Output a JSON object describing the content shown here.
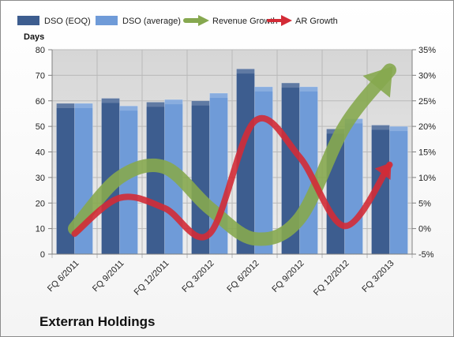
{
  "caption": "Exterran Holdings",
  "chart_data": {
    "type": "bar",
    "categories": [
      "FQ 6/2011",
      "FQ 9/2011",
      "FQ 12/2011",
      "FQ 3/2012",
      "FQ 6/2012",
      "FQ 9/2012",
      "FQ 12/2012",
      "FQ 3/2013"
    ],
    "series": [
      {
        "name": "DSO (EOQ)",
        "axis": "left",
        "kind": "bar",
        "color": "#3d5d8f",
        "values": [
          59,
          61,
          59.5,
          60,
          72.5,
          67,
          49,
          50.5
        ]
      },
      {
        "name": "DSO (average)",
        "axis": "left",
        "kind": "bar",
        "color": "#6f9bd8",
        "values": [
          59,
          58,
          60.5,
          63,
          65.5,
          65.5,
          53,
          50
        ]
      },
      {
        "name": "Revenue Growth",
        "axis": "right",
        "kind": "arrow-line",
        "color": "#86a84f",
        "values": [
          0,
          10,
          12,
          4,
          -2,
          2,
          20,
          31
        ]
      },
      {
        "name": "AR Growth",
        "axis": "right",
        "kind": "arrow-line",
        "color": "#d32b36",
        "values": [
          -1,
          6,
          4,
          -1,
          21,
          14,
          0.5,
          12.5
        ]
      }
    ],
    "y_left": {
      "title": "Days",
      "range": [
        0,
        80
      ],
      "ticks": [
        "0",
        "10",
        "20",
        "30",
        "40",
        "50",
        "60",
        "70",
        "80"
      ]
    },
    "y_right": {
      "range": [
        -5,
        35
      ],
      "ticks": [
        "-5%",
        "0%",
        "5%",
        "10%",
        "15%",
        "20%",
        "25%",
        "30%",
        "35%"
      ]
    },
    "legend": "top",
    "grid": true
  }
}
